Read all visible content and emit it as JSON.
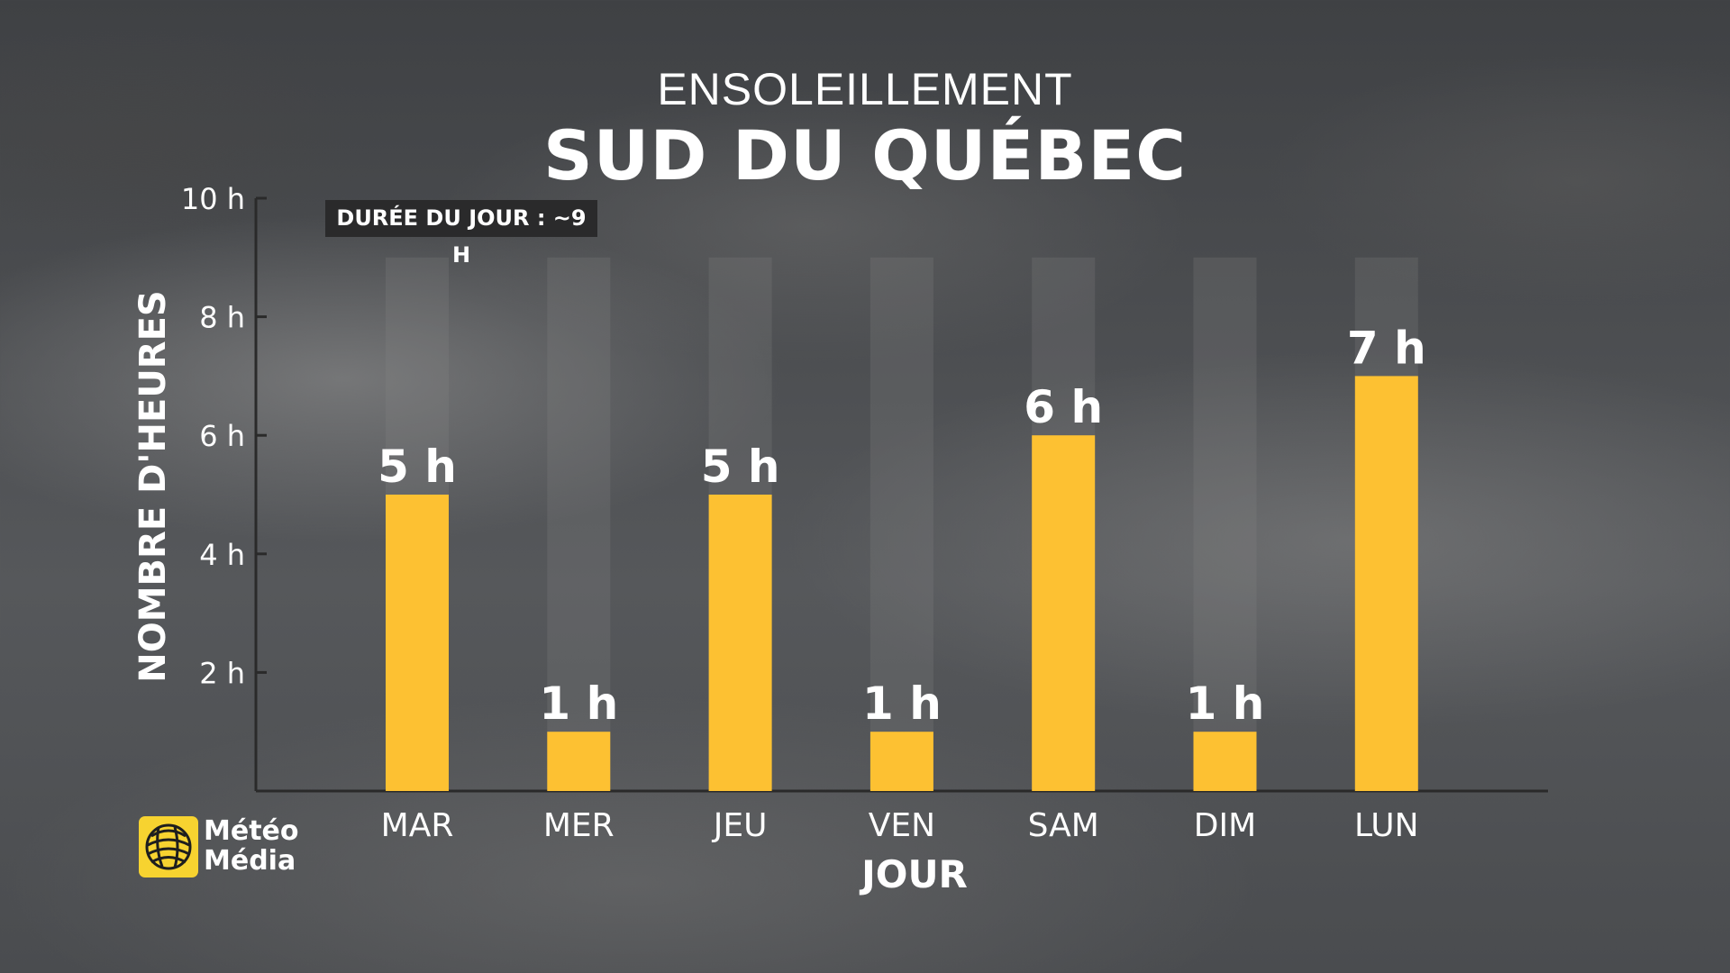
{
  "header": {
    "subtitle": "ENSOLEILLEMENT",
    "title": "SUD DU QUÉBEC"
  },
  "badge": {
    "text": "DURÉE DU JOUR : ~9 H"
  },
  "logo": {
    "line1": "Météo",
    "line2": "Média",
    "icon": "sun-globe-icon",
    "color": "#f7d330"
  },
  "chart_data": {
    "type": "bar",
    "categories": [
      "MAR",
      "MER",
      "JEU",
      "VEN",
      "SAM",
      "DIM",
      "LUN"
    ],
    "values": [
      5,
      1,
      5,
      1,
      6,
      1,
      7
    ],
    "data_labels": [
      "5 h",
      "1 h",
      "5 h",
      "1 h",
      "6 h",
      "1 h",
      "7 h"
    ],
    "background_values": [
      9,
      9,
      9,
      9,
      9,
      9,
      9
    ],
    "xlabel": "JOUR",
    "ylabel": "NOMBRE D'HEURES",
    "ylim": [
      0,
      10
    ],
    "yticks": [
      2,
      4,
      6,
      8,
      10
    ],
    "ytick_labels": [
      "2 h",
      "4 h",
      "6 h",
      "8 h",
      "10 h"
    ],
    "grid": false,
    "bar_color": "#fdc132",
    "background_bar_color": "#8a8a8a"
  }
}
